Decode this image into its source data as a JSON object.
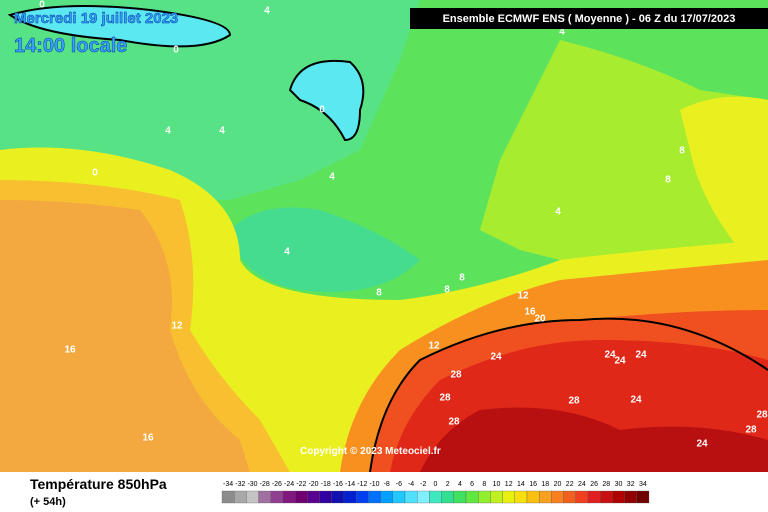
{
  "header": {
    "date": "Mercredi 19 juillet 2023",
    "time": "14:00 locale",
    "model": "Ensemble ECMWF ENS  ( Moyenne )  - 06 Z du 17/07/2023",
    "copyright": "Copyright © 2023 Meteociel.fr"
  },
  "legend": {
    "title": "Température 850hPa",
    "lead": "(+ 54h)",
    "ticks": [
      -34,
      -32,
      -30,
      -28,
      -26,
      -24,
      -22,
      -20,
      -18,
      -16,
      -14,
      -12,
      -10,
      -8,
      -6,
      -4,
      -2,
      0,
      2,
      4,
      6,
      8,
      10,
      12,
      14,
      16,
      18,
      20,
      22,
      24,
      26,
      28,
      30,
      32,
      34
    ],
    "colors": [
      "#8c8c8c",
      "#a8a8a8",
      "#c4c4c4",
      "#a070a0",
      "#904090",
      "#801880",
      "#700070",
      "#5a0090",
      "#3000a0",
      "#1010b0",
      "#0020d0",
      "#0040f0",
      "#0070ff",
      "#00a0ff",
      "#20c8ff",
      "#50e0ff",
      "#80f0ff",
      "#40e8c0",
      "#30e090",
      "#40e060",
      "#60e840",
      "#90f030",
      "#c0f020",
      "#e8f010",
      "#f8e010",
      "#f8c010",
      "#f8a020",
      "#f88020",
      "#f06020",
      "#f04020",
      "#e02020",
      "#c81010",
      "#b00000",
      "#900000",
      "#700000"
    ]
  },
  "contour_labels": [
    0,
    4,
    0,
    4,
    0,
    4,
    4,
    0,
    4,
    8,
    8,
    4,
    4,
    8,
    8,
    8,
    12,
    16,
    20,
    12,
    12,
    16,
    24,
    24,
    24,
    24,
    28,
    28,
    28,
    24,
    28,
    28,
    28,
    16,
    24
  ]
}
